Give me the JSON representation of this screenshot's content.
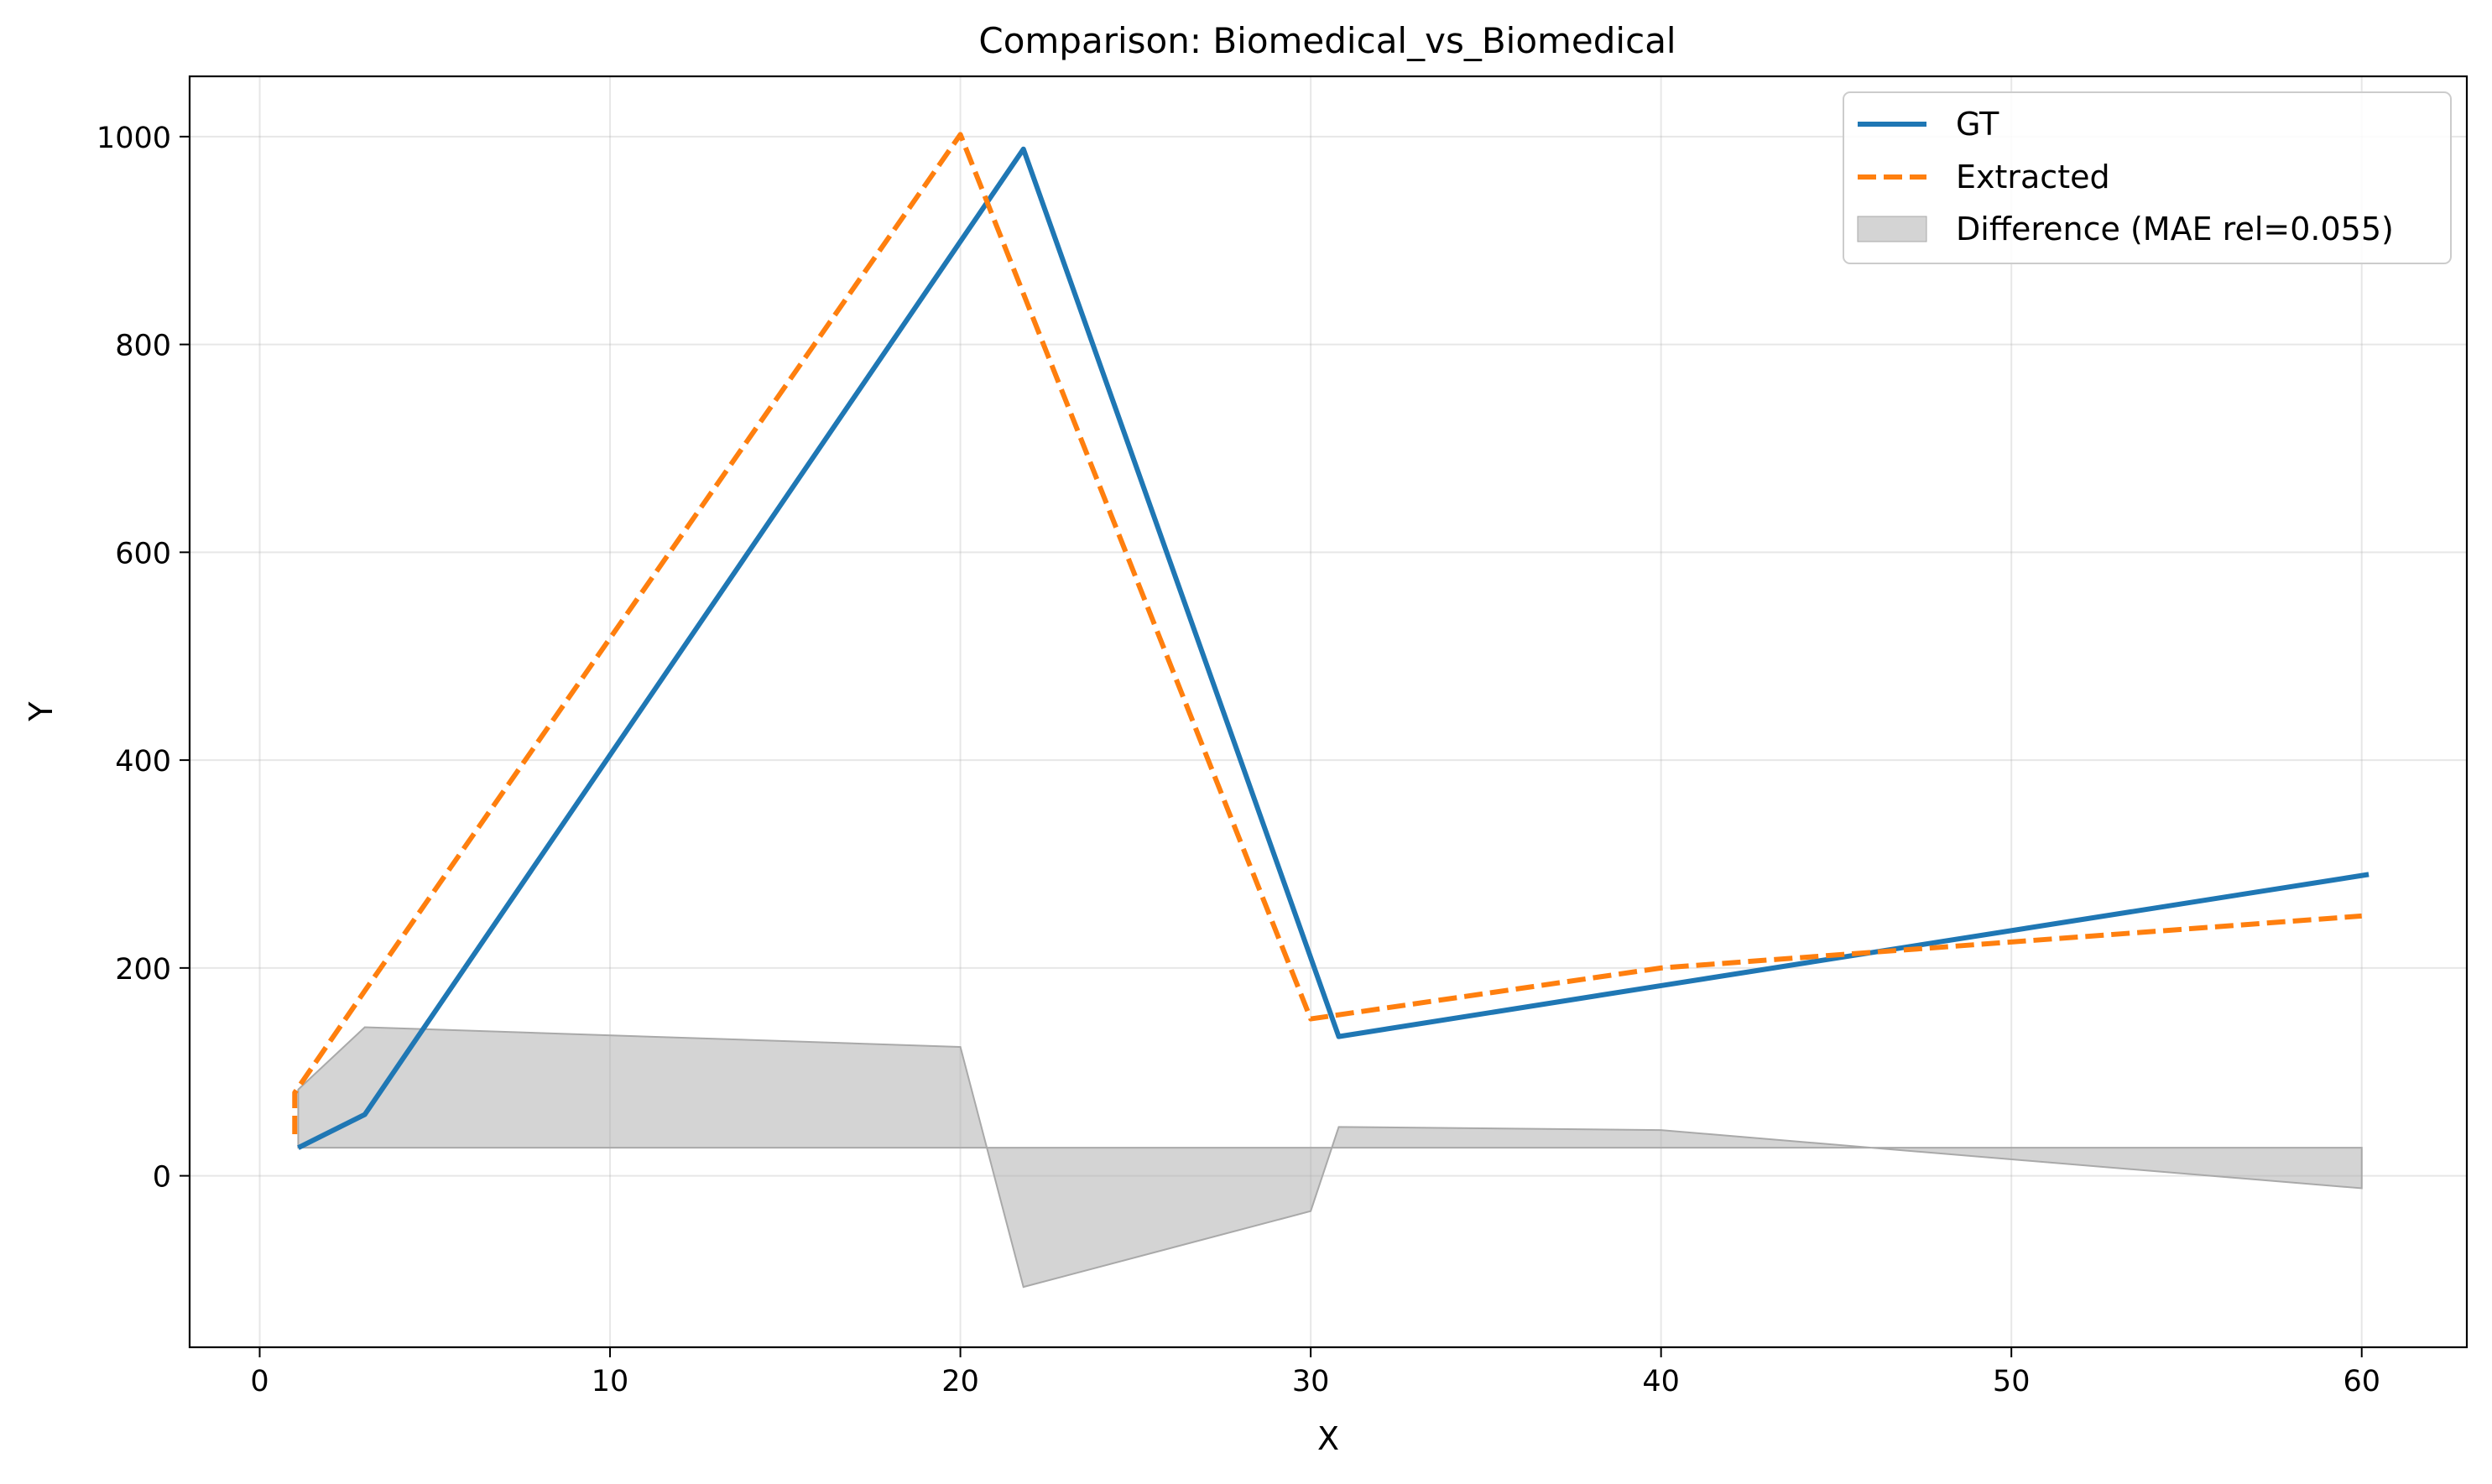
{
  "chart_data": {
    "type": "line",
    "title": "Comparison: Biomedical_vs_Biomedical",
    "xlabel": "X",
    "ylabel": "Y",
    "xlim": [
      -2,
      63
    ],
    "ylim": [
      -165,
      1058
    ],
    "xticks": [
      0,
      10,
      20,
      30,
      40,
      50,
      60
    ],
    "yticks": [
      0,
      200,
      400,
      600,
      800,
      1000
    ],
    "grid": true,
    "legend_position": "top-right",
    "series": [
      {
        "name": "GT",
        "style": "solid",
        "color": "#1f77b4",
        "x": [
          1.1,
          3.0,
          21.8,
          30.8,
          40.0,
          60.2
        ],
        "y": [
          27,
          59,
          988,
          134,
          183,
          290
        ]
      },
      {
        "name": "Extracted",
        "style": "dashed",
        "color": "#ff7f0e",
        "x": [
          1.0,
          1.0,
          3.0,
          20.0,
          30.0,
          40.0,
          60.0
        ],
        "y": [
          40,
          80,
          178,
          1002,
          151,
          200,
          250
        ]
      }
    ],
    "difference": {
      "name": "Difference (MAE rel=0.055)",
      "color": "#a9a9a9",
      "baseline": 27,
      "x": [
        1.1,
        3.0,
        20.0,
        21.8,
        30.0,
        30.8,
        40.0,
        46.0,
        60.0
      ],
      "y": [
        83,
        143,
        124,
        -107,
        -34,
        47,
        44,
        27,
        -12
      ]
    }
  }
}
